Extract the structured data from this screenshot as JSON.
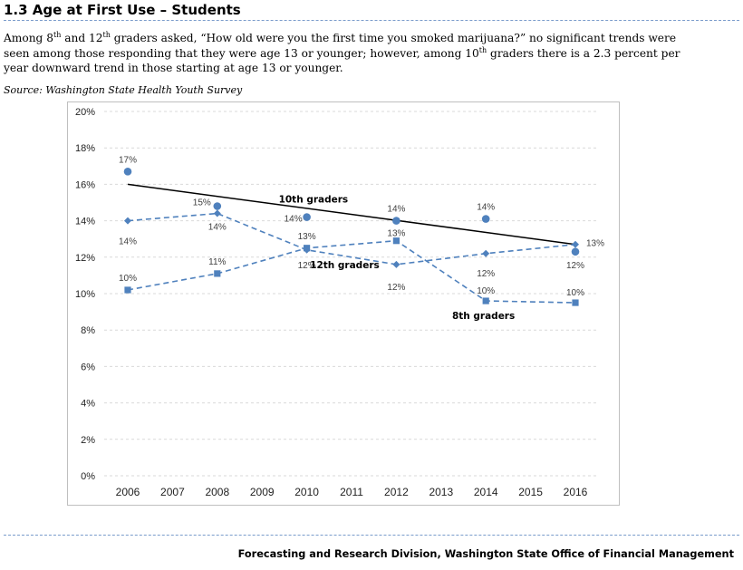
{
  "heading": "1.3 Age at First Use – Students",
  "intro": {
    "p1": "Among 8",
    "sup1": "th",
    "p2": " and 12",
    "sup2": "th",
    "p3": " graders asked, “How old were you the first time you smoked marijuana?” no significant trends were seen among those responding that they were age 13 or younger; however, among 10",
    "sup3": "th",
    "p4": " graders there is a 2.3 percent per year downward trend in those starting at age 13 or younger."
  },
  "source": "Source: Washington State Health Youth Survey",
  "footer": "Forecasting and Research Division, Washington State Office of Financial Management",
  "colors": {
    "series": "#4f81bd",
    "trend": "#000000",
    "grid": "#d9d9d9",
    "rule": "#7a9ccb"
  },
  "chart_data": {
    "type": "line",
    "title": "",
    "xlabel": "",
    "ylabel": "",
    "ylim": [
      0,
      20
    ],
    "y_ticks": [
      "0%",
      "2%",
      "4%",
      "6%",
      "8%",
      "10%",
      "12%",
      "14%",
      "16%",
      "18%",
      "20%"
    ],
    "x_ticks": [
      "2006",
      "2007",
      "2008",
      "2009",
      "2010",
      "2011",
      "2012",
      "2013",
      "2014",
      "2015",
      "2016"
    ],
    "grid": "horizontal dashed",
    "series": [
      {
        "name": "10th graders",
        "style": "markers-only",
        "marker": "circle",
        "x": [
          2006,
          2008,
          2010,
          2012,
          2014,
          2016
        ],
        "values": [
          16.7,
          14.8,
          14.2,
          14.0,
          14.1,
          12.3
        ],
        "labels": [
          "17%",
          "15%",
          "14%",
          "14%",
          "14%",
          "12%"
        ]
      },
      {
        "name": "12th graders",
        "style": "dashed-line",
        "marker": "diamond",
        "x": [
          2006,
          2008,
          2010,
          2012,
          2014,
          2016
        ],
        "values": [
          14.0,
          14.4,
          12.4,
          11.6,
          12.2,
          12.7
        ],
        "labels": [
          "14%",
          "14%",
          "12%",
          "12%",
          "12%",
          "13%"
        ]
      },
      {
        "name": "8th graders",
        "style": "dashed-line",
        "marker": "square",
        "x": [
          2006,
          2008,
          2010,
          2012,
          2014,
          2016
        ],
        "values": [
          10.2,
          11.1,
          12.5,
          12.9,
          9.6,
          9.5
        ],
        "labels": [
          "10%",
          "11%",
          "13%",
          "13%",
          "10%",
          "10%"
        ]
      }
    ],
    "trendline": {
      "series": "10th graders",
      "x": [
        2006,
        2016
      ],
      "values": [
        16.0,
        12.7
      ]
    }
  }
}
